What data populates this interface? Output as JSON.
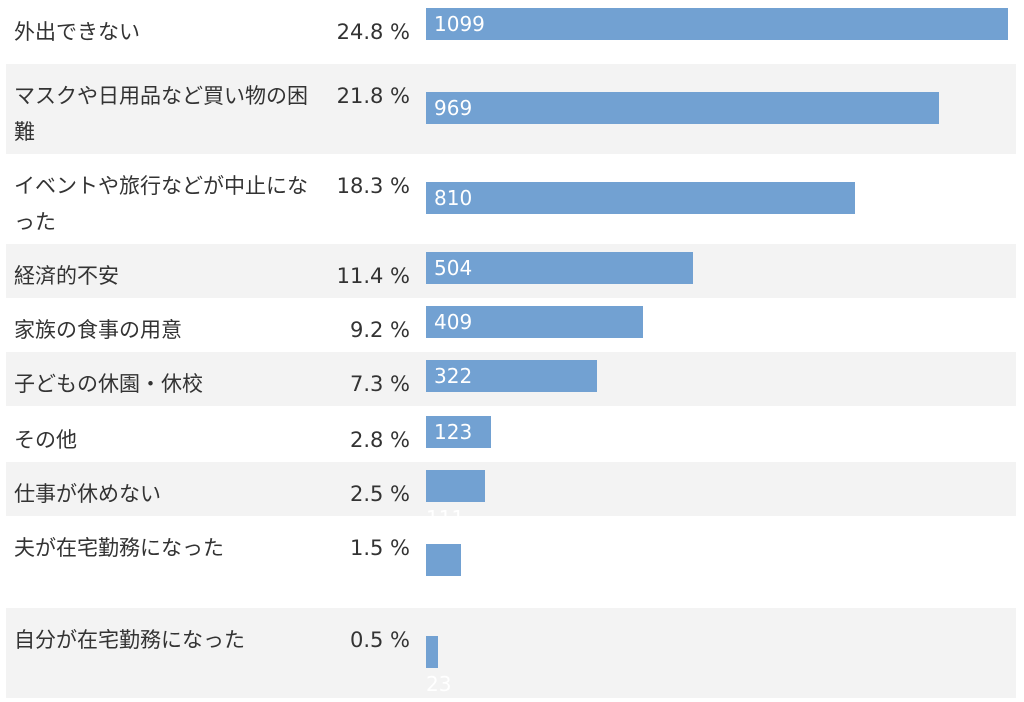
{
  "colors": {
    "bar": "#72a1d2",
    "stripe": "#f3f3f3",
    "value_text": "#ffffff"
  },
  "chart_data": {
    "type": "bar",
    "orientation": "horizontal",
    "categories": [
      "外出できない",
      "マスクや日用品など買い物の困難",
      "イベントや旅行などが中止になった",
      "経済的不安",
      "家族の食事の用意",
      "子どもの休園・休校",
      "その他",
      "仕事が休めない",
      "夫が在宅勤務になった",
      "自分が在宅勤務になった"
    ],
    "percents": [
      "24.8 %",
      "21.8 %",
      "18.3 %",
      "11.4 %",
      "9.2 %",
      "7.3 %",
      "2.8 %",
      "2.5 %",
      "1.5 %",
      "0.5 %"
    ],
    "values": [
      1099,
      969,
      810,
      504,
      409,
      322,
      123,
      111,
      66,
      23
    ],
    "value_labels": [
      "1099",
      "969",
      "810",
      "504",
      "409",
      "322",
      "123",
      "111",
      "",
      "23"
    ],
    "xlim": [
      0,
      1099
    ],
    "grid": false,
    "legend": "none"
  }
}
